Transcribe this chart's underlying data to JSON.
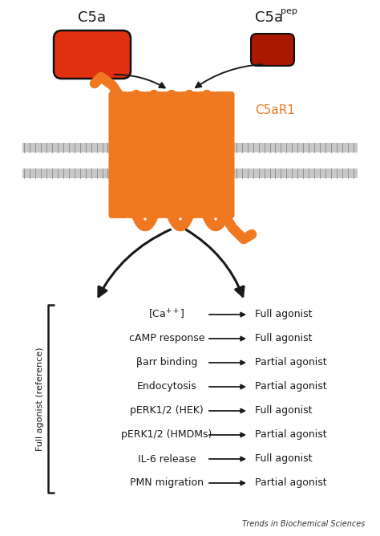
{
  "bg_color": "#ffffff",
  "red_dark": "#cc1100",
  "red_light": "#dd2200",
  "orange": "#f07820",
  "dark": "#1a1a1a",
  "gray_mem": "#aaaaaa",
  "c5a_label": "C5a",
  "c5apep_super": "pep",
  "receptor_label": "C5aR1",
  "left_bracket_label": "Full agonist (reference)",
  "rows": [
    {
      "left": "[Ca$^{++}$]",
      "right": "Full agonist"
    },
    {
      "left": "cAMP response",
      "right": "Full agonist"
    },
    {
      "left": "βarr binding",
      "right": "Partial agonist"
    },
    {
      "left": "Endocytosis",
      "right": "Partial agonist"
    },
    {
      "left": "pERK1/2 (HEK)",
      "right": "Full agonist"
    },
    {
      "left": "pERK1/2 (HMDMs)",
      "right": "Partial agonist"
    },
    {
      "left": "IL-6 release",
      "right": "Full agonist"
    },
    {
      "left": "PMN migration",
      "right": "Partial agonist"
    }
  ],
  "footer": "Trends in Biochemical Sciences"
}
